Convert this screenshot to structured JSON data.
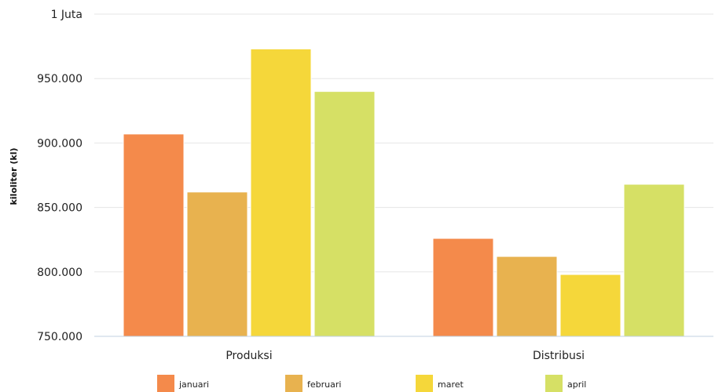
{
  "chart_data": {
    "type": "bar",
    "ylabel": "kiloliter (kl)",
    "ylim": [
      750000,
      1000000
    ],
    "yticks": [
      {
        "value": 750000,
        "label": "750.000"
      },
      {
        "value": 800000,
        "label": "800.000"
      },
      {
        "value": 850000,
        "label": "850.000"
      },
      {
        "value": 900000,
        "label": "900.000"
      },
      {
        "value": 950000,
        "label": "950.000"
      },
      {
        "value": 1000000,
        "label": "1 Juta"
      }
    ],
    "categories": [
      "Produksi",
      "Distribusi"
    ],
    "series": [
      {
        "name": "januari",
        "color": "#f48a4b",
        "values": [
          907000,
          826000
        ]
      },
      {
        "name": "februari",
        "color": "#e8b24f",
        "values": [
          862000,
          812000
        ]
      },
      {
        "name": "maret",
        "color": "#f5d73a",
        "values": [
          973000,
          798000
        ]
      },
      {
        "name": "april",
        "color": "#d6e065",
        "values": [
          940000,
          868000
        ]
      }
    ],
    "grid": true,
    "legend_position": "bottom"
  }
}
